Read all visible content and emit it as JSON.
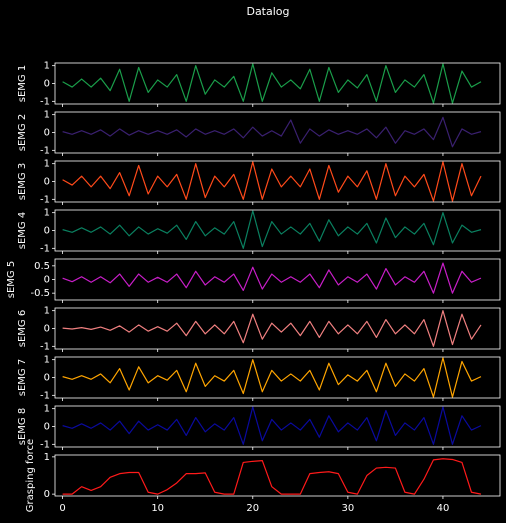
{
  "chart_data": {
    "type": "line",
    "title": "Datalog",
    "x": [
      0,
      1,
      2,
      3,
      4,
      5,
      6,
      7,
      8,
      9,
      10,
      11,
      12,
      13,
      14,
      15,
      16,
      17,
      18,
      19,
      20,
      21,
      22,
      23,
      24,
      25,
      26,
      27,
      28,
      29,
      30,
      31,
      32,
      33,
      34,
      35,
      36,
      37,
      38,
      39,
      40,
      41,
      42,
      43,
      44
    ],
    "xlim": [
      -0.8,
      46
    ],
    "xticks": [
      0,
      10,
      20,
      30,
      40
    ],
    "series": [
      {
        "ylabel": "sEMG 1",
        "color": "#1a9e4a",
        "ylim": [
          -1.15,
          1.15
        ],
        "yticks": [
          -1,
          0,
          1
        ],
        "values": [
          0.1,
          -0.2,
          0.25,
          -0.2,
          0.3,
          -0.4,
          0.8,
          -1,
          0.9,
          -0.5,
          0.2,
          -0.2,
          0.5,
          -1,
          1,
          -0.6,
          0.2,
          -0.2,
          0.4,
          -1,
          1.1,
          -1,
          0.6,
          -0.2,
          0.2,
          -0.3,
          0.8,
          -1,
          0.9,
          -0.5,
          0.2,
          -0.25,
          0.5,
          -1,
          1,
          -0.5,
          0.2,
          -0.2,
          0.5,
          -1.1,
          1.1,
          -1.1,
          0.7,
          -0.2,
          0.1
        ]
      },
      {
        "ylabel": "sEMG 2",
        "color": "#3a2070",
        "ylim": [
          -1.15,
          1.15
        ],
        "yticks": [
          -1,
          0,
          1
        ],
        "values": [
          0.05,
          -0.1,
          0.1,
          -0.1,
          0.15,
          -0.2,
          0.2,
          -0.15,
          0.1,
          -0.1,
          0.1,
          -0.1,
          0.15,
          -0.25,
          0.2,
          -0.1,
          0.1,
          -0.1,
          0.2,
          -0.3,
          0.3,
          -0.2,
          0.1,
          -0.2,
          0.7,
          -0.6,
          0.2,
          -0.2,
          0.15,
          -0.1,
          0.1,
          -0.1,
          0.2,
          -0.3,
          0.3,
          -0.6,
          0.1,
          -0.1,
          0.2,
          -0.4,
          0.85,
          -0.8,
          0.2,
          -0.1,
          0.05
        ]
      },
      {
        "ylabel": "sEMG 3",
        "color": "#ff4a1a",
        "ylim": [
          -1.15,
          1.15
        ],
        "yticks": [
          -1,
          0,
          1
        ],
        "values": [
          0.1,
          -0.2,
          0.3,
          -0.3,
          0.3,
          -0.4,
          0.5,
          -0.8,
          0.9,
          -0.7,
          0.3,
          -0.3,
          0.4,
          -1,
          1,
          -0.9,
          0.3,
          -0.3,
          0.4,
          -1,
          1.1,
          -1,
          0.7,
          -0.3,
          0.3,
          -0.3,
          0.7,
          -1,
          0.9,
          -0.6,
          0.3,
          -0.3,
          0.6,
          -1,
          1,
          -0.8,
          0.3,
          -0.3,
          0.4,
          -1.1,
          1.1,
          -1.1,
          1,
          -0.8,
          0.3
        ]
      },
      {
        "ylabel": "sEMG 4",
        "color": "#0a8060",
        "ylim": [
          -1.15,
          1.15
        ],
        "yticks": [
          -1,
          0,
          1
        ],
        "values": [
          0.05,
          -0.1,
          0.15,
          -0.1,
          0.2,
          -0.2,
          0.3,
          -0.3,
          0.2,
          -0.2,
          0.1,
          -0.15,
          0.3,
          -0.5,
          0.5,
          -0.3,
          0.15,
          -0.2,
          0.5,
          -1,
          1.1,
          -0.9,
          0.5,
          -0.2,
          0.2,
          -0.2,
          0.4,
          -0.6,
          0.6,
          -0.3,
          0.2,
          -0.2,
          0.4,
          -0.7,
          0.7,
          -0.4,
          0.2,
          -0.2,
          0.4,
          -0.8,
          1,
          -0.7,
          0.3,
          -0.1,
          0.05
        ]
      },
      {
        "ylabel": "sEMG 5",
        "color": "#c81ec8",
        "ylim": [
          -0.75,
          0.75
        ],
        "yticks": [
          -0.5,
          0,
          0.5
        ],
        "values": [
          0.05,
          -0.08,
          0.1,
          -0.1,
          0.1,
          -0.12,
          0.2,
          -0.25,
          0.2,
          -0.1,
          0.08,
          -0.1,
          0.2,
          -0.3,
          0.3,
          -0.2,
          0.1,
          -0.1,
          0.2,
          -0.4,
          0.45,
          -0.35,
          0.2,
          -0.1,
          0.1,
          -0.1,
          0.2,
          -0.3,
          0.35,
          -0.2,
          0.1,
          -0.1,
          0.2,
          -0.35,
          0.4,
          -0.2,
          0.1,
          -0.1,
          0.3,
          -0.5,
          0.6,
          -0.5,
          0.3,
          -0.1,
          0.05
        ]
      },
      {
        "ylabel": "sEMG 6",
        "color": "#f08080",
        "ylim": [
          -1.15,
          1.15
        ],
        "yticks": [
          -1,
          0,
          1
        ],
        "values": [
          0.02,
          -0.03,
          0.05,
          -0.05,
          0.08,
          -0.1,
          0.15,
          -0.2,
          0.2,
          -0.15,
          0.1,
          -0.15,
          0.3,
          -0.4,
          0.4,
          -0.3,
          0.2,
          -0.3,
          0.4,
          -0.8,
          0.8,
          -0.6,
          0.3,
          -0.2,
          0.3,
          -0.4,
          0.4,
          -0.5,
          0.4,
          -0.3,
          0.2,
          -0.3,
          0.4,
          -0.5,
          0.5,
          -0.3,
          0.2,
          -0.3,
          0.5,
          -1,
          1,
          -0.9,
          0.8,
          -0.6,
          0.2
        ]
      },
      {
        "ylabel": "sEMG 7",
        "color": "#ffa500",
        "ylim": [
          -1.15,
          1.15
        ],
        "yticks": [
          -1,
          0,
          1
        ],
        "values": [
          0.05,
          -0.1,
          0.1,
          -0.1,
          0.2,
          -0.3,
          0.5,
          -0.7,
          0.6,
          -0.3,
          0.1,
          -0.15,
          0.4,
          -0.8,
          0.8,
          -0.5,
          0.1,
          -0.2,
          0.4,
          -0.9,
          1,
          -0.8,
          0.4,
          -0.2,
          0.2,
          -0.2,
          0.4,
          -0.7,
          0.8,
          -0.4,
          0.15,
          -0.2,
          0.4,
          -0.8,
          0.8,
          -0.5,
          0.2,
          -0.2,
          0.5,
          -1.1,
          1.1,
          -1.1,
          0.9,
          -0.2,
          0.05
        ]
      },
      {
        "ylabel": "sEMG 8",
        "color": "#0a0a9e",
        "ylim": [
          -1.15,
          1.15
        ],
        "yticks": [
          -1,
          0,
          1
        ],
        "values": [
          0.05,
          -0.1,
          0.15,
          -0.1,
          0.2,
          -0.2,
          0.3,
          -0.4,
          0.3,
          -0.2,
          0.1,
          -0.2,
          0.4,
          -0.5,
          0.5,
          -0.3,
          0.15,
          -0.2,
          0.5,
          -1,
          1.1,
          -0.8,
          0.4,
          -0.2,
          0.2,
          -0.2,
          0.4,
          -0.6,
          0.6,
          -0.3,
          0.2,
          -0.2,
          0.5,
          -0.8,
          0.9,
          -0.5,
          0.2,
          -0.2,
          0.5,
          -1,
          1.1,
          -1,
          0.6,
          -0.2,
          0.05
        ]
      },
      {
        "ylabel": "Grasping force",
        "color": "#ff1a1a",
        "ylim": [
          -0.05,
          1.05
        ],
        "yticks": [
          0,
          1
        ],
        "values": [
          0,
          0,
          0.2,
          0.1,
          0.2,
          0.45,
          0.55,
          0.58,
          0.58,
          0.05,
          0,
          0.12,
          0.3,
          0.55,
          0.55,
          0.57,
          0.05,
          0,
          0,
          0.85,
          0.88,
          0.9,
          0.2,
          0,
          0,
          0,
          0.55,
          0.58,
          0.6,
          0.55,
          0.05,
          0,
          0.5,
          0.7,
          0.72,
          0.7,
          0.05,
          0,
          0.4,
          0.92,
          0.95,
          0.93,
          0.85,
          0.05,
          0
        ]
      }
    ]
  }
}
